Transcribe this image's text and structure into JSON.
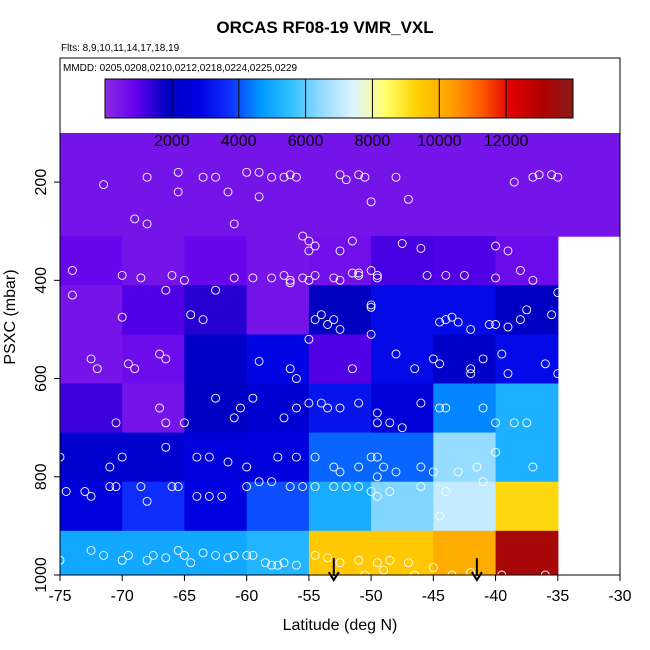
{
  "chart_data": {
    "type": "heatmap",
    "title": "ORCAS RF08-19 VMR_VXL",
    "flights_note": "Flts: 8,9,10,11,14,17,18,19",
    "dates_note": "MMDD: 0205,0208,0210,0212,0218,0224,0225,0229",
    "xlabel": "Latitude (deg N)",
    "ylabel": "PSXC (mbar)",
    "xlim": [
      -75,
      -30
    ],
    "ylim": [
      1000,
      100
    ],
    "x_ticks": [
      -75,
      -70,
      -65,
      -60,
      -55,
      -50,
      -45,
      -40,
      -35,
      -30
    ],
    "x_tick_labels": [
      "-75",
      "-70",
      "-65",
      "-60",
      "-55",
      "-50",
      "-45",
      "-40",
      "-35",
      "-30"
    ],
    "y_ticks": [
      200,
      400,
      600,
      800,
      1000
    ],
    "y_tick_labels": [
      "200",
      "400",
      "600",
      "800",
      "1000"
    ],
    "colorbar": {
      "range": [
        0,
        14000
      ],
      "ticks": [
        2000,
        4000,
        6000,
        8000,
        10000,
        12000
      ],
      "tick_labels": [
        "2000",
        "4000",
        "6000",
        "8000",
        "10000",
        "12000"
      ],
      "colors": [
        "#8a2be2",
        "#6200ee",
        "#0000c0",
        "#0000e0",
        "#1030ff",
        "#0099ff",
        "#33c2ff",
        "#99ddff",
        "#e0f4ff",
        "#ffff66",
        "#ffd000",
        "#ffa500",
        "#ff6000",
        "#e00000",
        "#b00000",
        "#8b1a1a"
      ]
    },
    "lat_bins": [
      -75,
      -70,
      -65,
      -60,
      -55,
      -50,
      -45,
      -40,
      -35
    ],
    "pressure_bins": [
      100,
      150,
      250,
      350,
      450,
      550,
      650,
      750,
      850,
      950
    ],
    "rows": [
      {
        "p": [
          100,
          310
        ],
        "cells": [
          {
            "x": [
              -75,
              -60
            ],
            "value": 500
          },
          {
            "x": [
              -60,
              -35
            ],
            "value": 500
          },
          {
            "x": [
              -35,
              -30
            ],
            "value": 500
          }
        ]
      },
      {
        "p": [
          310,
          410
        ],
        "cells": [
          {
            "x": [
              -75,
              -70
            ],
            "value": 800
          },
          {
            "x": [
              -70,
              -65
            ],
            "value": 500
          },
          {
            "x": [
              -65,
              -60
            ],
            "value": 800
          },
          {
            "x": [
              -60,
              -55
            ],
            "value": 500
          },
          {
            "x": [
              -55,
              -50
            ],
            "value": 600
          },
          {
            "x": [
              -50,
              -45
            ],
            "value": 1200
          },
          {
            "x": [
              -45,
              -40
            ],
            "value": 1100
          },
          {
            "x": [
              -40,
              -35
            ],
            "value": 700
          }
        ]
      },
      {
        "p": [
          410,
          510
        ],
        "cells": [
          {
            "x": [
              -75,
              -70
            ],
            "value": 500
          },
          {
            "x": [
              -70,
              -65
            ],
            "value": 1100
          },
          {
            "x": [
              -65,
              -60
            ],
            "value": 1500
          },
          {
            "x": [
              -60,
              -55
            ],
            "value": 500
          },
          {
            "x": [
              -55,
              -50
            ],
            "value": 1900
          },
          {
            "x": [
              -50,
              -45
            ],
            "value": 3000
          },
          {
            "x": [
              -45,
              -40
            ],
            "value": 3000
          },
          {
            "x": [
              -40,
              -35
            ],
            "value": 2000
          }
        ]
      },
      {
        "p": [
          510,
          610
        ],
        "cells": [
          {
            "x": [
              -75,
              -70
            ],
            "value": 500
          },
          {
            "x": [
              -70,
              -65
            ],
            "value": 700
          },
          {
            "x": [
              -65,
              -60
            ],
            "value": 2100
          },
          {
            "x": [
              -60,
              -55
            ],
            "value": 2900
          },
          {
            "x": [
              -55,
              -50
            ],
            "value": 1100
          },
          {
            "x": [
              -50,
              -45
            ],
            "value": 3000
          },
          {
            "x": [
              -45,
              -40
            ],
            "value": 2100
          },
          {
            "x": [
              -40,
              -35
            ],
            "value": 3000
          }
        ]
      },
      {
        "p": [
          610,
          710
        ],
        "cells": [
          {
            "x": [
              -75,
              -70
            ],
            "value": 1300
          },
          {
            "x": [
              -70,
              -65
            ],
            "value": 500
          },
          {
            "x": [
              -65,
              -60
            ],
            "value": 2000
          },
          {
            "x": [
              -60,
              -55
            ],
            "value": 2400
          },
          {
            "x": [
              -55,
              -50
            ],
            "value": 3200
          },
          {
            "x": [
              -50,
              -45
            ],
            "value": 2600
          },
          {
            "x": [
              -45,
              -40
            ],
            "value": 4500
          },
          {
            "x": [
              -40,
              -35
            ],
            "value": 5200
          }
        ]
      },
      {
        "p": [
          710,
          810
        ],
        "cells": [
          {
            "x": [
              -75,
              -70
            ],
            "value": 2300
          },
          {
            "x": [
              -70,
              -65
            ],
            "value": 2300
          },
          {
            "x": [
              -65,
              -60
            ],
            "value": 2700
          },
          {
            "x": [
              -60,
              -55
            ],
            "value": 2700
          },
          {
            "x": [
              -55,
              -50
            ],
            "value": 4200
          },
          {
            "x": [
              -50,
              -45
            ],
            "value": 4200
          },
          {
            "x": [
              -45,
              -40
            ],
            "value": 6500
          },
          {
            "x": [
              -40,
              -35
            ],
            "value": 5200
          }
        ]
      },
      {
        "p": [
          810,
          910
        ],
        "cells": [
          {
            "x": [
              -75,
              -70
            ],
            "value": 2700
          },
          {
            "x": [
              -70,
              -65
            ],
            "value": 3700
          },
          {
            "x": [
              -65,
              -60
            ],
            "value": 2800
          },
          {
            "x": [
              -60,
              -55
            ],
            "value": 4000
          },
          {
            "x": [
              -55,
              -50
            ],
            "value": 5100
          },
          {
            "x": [
              -50,
              -45
            ],
            "value": 6300
          },
          {
            "x": [
              -45,
              -40
            ],
            "value": 7100
          },
          {
            "x": [
              -40,
              -35
            ],
            "value": 9200
          }
        ]
      },
      {
        "p": [
          910,
          1010
        ],
        "cells": [
          {
            "x": [
              -75,
              -70
            ],
            "value": 5000
          },
          {
            "x": [
              -70,
              -65
            ],
            "value": 5000
          },
          {
            "x": [
              -65,
              -60
            ],
            "value": 5000
          },
          {
            "x": [
              -60,
              -55
            ],
            "value": 5300
          },
          {
            "x": [
              -55,
              -50
            ],
            "value": 9500
          },
          {
            "x": [
              -50,
              -45
            ],
            "value": 9500
          },
          {
            "x": [
              -45,
              -40
            ],
            "value": 10100
          },
          {
            "x": [
              -40,
              -35
            ],
            "value": 13300
          }
        ]
      }
    ],
    "markers": [
      {
        "lat": -53,
        "pressure": 990,
        "symbol": "down-arrow"
      },
      {
        "lat": -41.5,
        "pressure": 990,
        "symbol": "down-arrow"
      }
    ],
    "observations": [
      [
        -71.5,
        205
      ],
      [
        -68,
        190
      ],
      [
        -65.5,
        180
      ],
      [
        -63.5,
        190
      ],
      [
        -62.5,
        190
      ],
      [
        -60,
        180
      ],
      [
        -59,
        180
      ],
      [
        -58,
        190
      ],
      [
        -57,
        190
      ],
      [
        -56.5,
        185
      ],
      [
        -56,
        190
      ],
      [
        -52.5,
        185
      ],
      [
        -52,
        195
      ],
      [
        -51,
        185
      ],
      [
        -50.5,
        190
      ],
      [
        -50,
        240
      ],
      [
        -48,
        190
      ],
      [
        -47,
        235
      ],
      [
        -38.5,
        200
      ],
      [
        -37,
        190
      ],
      [
        -36.5,
        185
      ],
      [
        -35.5,
        185
      ],
      [
        -35,
        190
      ],
      [
        -69,
        275
      ],
      [
        -68,
        285
      ],
      [
        -65.5,
        220
      ],
      [
        -61.5,
        220
      ],
      [
        -61,
        285
      ],
      [
        -59,
        230
      ],
      [
        -55.5,
        310
      ],
      [
        -55,
        320
      ],
      [
        -55,
        340
      ],
      [
        -54.5,
        330
      ],
      [
        -52.5,
        340
      ],
      [
        -51.5,
        320
      ],
      [
        -51,
        390
      ],
      [
        -50,
        380
      ],
      [
        -49.5,
        390
      ],
      [
        -49.5,
        395
      ],
      [
        -47.5,
        325
      ],
      [
        -46,
        335
      ],
      [
        -45.5,
        390
      ],
      [
        -44,
        390
      ],
      [
        -42.5,
        390
      ],
      [
        -40,
        330
      ],
      [
        -40,
        395
      ],
      [
        -39,
        340
      ],
      [
        -38,
        380
      ],
      [
        -37,
        400
      ],
      [
        -35,
        425
      ],
      [
        -74,
        380
      ],
      [
        -70,
        390
      ],
      [
        -70,
        475
      ],
      [
        -68.5,
        395
      ],
      [
        -66.5,
        420
      ],
      [
        -66,
        390
      ],
      [
        -65,
        400
      ],
      [
        -62.5,
        420
      ],
      [
        -61,
        395
      ],
      [
        -59.5,
        395
      ],
      [
        -58,
        395
      ],
      [
        -57,
        390
      ],
      [
        -56.5,
        400
      ],
      [
        -56.5,
        405
      ],
      [
        -55.5,
        395
      ],
      [
        -55,
        400
      ],
      [
        -54.5,
        390
      ],
      [
        -53,
        395
      ],
      [
        -52.5,
        400
      ],
      [
        -51.5,
        385
      ],
      [
        -51,
        385
      ],
      [
        -50,
        450
      ],
      [
        -50,
        455
      ],
      [
        -44.5,
        485
      ],
      [
        -44,
        480
      ],
      [
        -43.5,
        475
      ],
      [
        -43,
        485
      ],
      [
        -42,
        500
      ],
      [
        -40.5,
        490
      ],
      [
        -40,
        490
      ],
      [
        -39,
        495
      ],
      [
        -38,
        480
      ],
      [
        -37.5,
        460
      ],
      [
        -35.5,
        470
      ],
      [
        -74,
        430
      ],
      [
        -72.5,
        560
      ],
      [
        -72,
        580
      ],
      [
        -69.5,
        570
      ],
      [
        -69,
        580
      ],
      [
        -67,
        550
      ],
      [
        -66.5,
        560
      ],
      [
        -64.5,
        470
      ],
      [
        -63.5,
        480
      ],
      [
        -59,
        565
      ],
      [
        -56.5,
        580
      ],
      [
        -56,
        600
      ],
      [
        -55,
        520
      ],
      [
        -54.5,
        480
      ],
      [
        -54,
        470
      ],
      [
        -53.5,
        490
      ],
      [
        -53,
        480
      ],
      [
        -52.5,
        500
      ],
      [
        -51.5,
        580
      ],
      [
        -50,
        510
      ],
      [
        -48,
        550
      ],
      [
        -46.5,
        580
      ],
      [
        -45,
        560
      ],
      [
        -44.5,
        570
      ],
      [
        -42,
        580
      ],
      [
        -42,
        590
      ],
      [
        -41,
        560
      ],
      [
        -39.5,
        550
      ],
      [
        -39,
        590
      ],
      [
        -36,
        570
      ],
      [
        -35,
        590
      ],
      [
        -70.5,
        690
      ],
      [
        -67,
        660
      ],
      [
        -66.5,
        690
      ],
      [
        -65,
        690
      ],
      [
        -62.5,
        640
      ],
      [
        -61,
        680
      ],
      [
        -60.5,
        660
      ],
      [
        -59.5,
        640
      ],
      [
        -57,
        680
      ],
      [
        -56,
        660
      ],
      [
        -55,
        650
      ],
      [
        -54,
        650
      ],
      [
        -53.5,
        660
      ],
      [
        -52.5,
        660
      ],
      [
        -51,
        650
      ],
      [
        -49.5,
        670
      ],
      [
        -49.5,
        690
      ],
      [
        -48.5,
        690
      ],
      [
        -47.5,
        700
      ],
      [
        -46,
        650
      ],
      [
        -44.5,
        660
      ],
      [
        -44,
        660
      ],
      [
        -41,
        660
      ],
      [
        -40,
        690
      ],
      [
        -38.5,
        690
      ],
      [
        -37.5,
        690
      ],
      [
        -75,
        760
      ],
      [
        -71,
        780
      ],
      [
        -70,
        760
      ],
      [
        -66.5,
        740
      ],
      [
        -64,
        760
      ],
      [
        -63,
        760
      ],
      [
        -61.5,
        770
      ],
      [
        -60,
        780
      ],
      [
        -57.5,
        760
      ],
      [
        -56,
        760
      ],
      [
        -54.5,
        760
      ],
      [
        -53,
        780
      ],
      [
        -52.5,
        790
      ],
      [
        -51,
        780
      ],
      [
        -50,
        760
      ],
      [
        -49.5,
        760
      ],
      [
        -49,
        780
      ],
      [
        -48,
        790
      ],
      [
        -46,
        780
      ],
      [
        -45,
        790
      ],
      [
        -43,
        790
      ],
      [
        -41.5,
        780
      ],
      [
        -40,
        750
      ],
      [
        -37,
        780
      ],
      [
        -74.5,
        830
      ],
      [
        -73,
        830
      ],
      [
        -72.5,
        840
      ],
      [
        -71,
        820
      ],
      [
        -70.5,
        820
      ],
      [
        -68.5,
        820
      ],
      [
        -68,
        850
      ],
      [
        -66,
        820
      ],
      [
        -65.5,
        820
      ],
      [
        -64,
        840
      ],
      [
        -63,
        840
      ],
      [
        -62,
        840
      ],
      [
        -60,
        820
      ],
      [
        -59,
        810
      ],
      [
        -58,
        810
      ],
      [
        -56.5,
        820
      ],
      [
        -55.5,
        820
      ],
      [
        -54.5,
        820
      ],
      [
        -53,
        820
      ],
      [
        -52,
        820
      ],
      [
        -51,
        820
      ],
      [
        -50,
        830
      ],
      [
        -49.5,
        800
      ],
      [
        -49.5,
        840
      ],
      [
        -48.5,
        830
      ],
      [
        -46,
        820
      ],
      [
        -44.5,
        880
      ],
      [
        -44,
        830
      ],
      [
        -41,
        810
      ],
      [
        -75,
        970
      ],
      [
        -72.5,
        950
      ],
      [
        -71.5,
        960
      ],
      [
        -70,
        970
      ],
      [
        -69.5,
        960
      ],
      [
        -68,
        970
      ],
      [
        -67.5,
        960
      ],
      [
        -66.5,
        965
      ],
      [
        -65.5,
        950
      ],
      [
        -65,
        960
      ],
      [
        -64.5,
        975
      ],
      [
        -63.5,
        955
      ],
      [
        -62.5,
        960
      ],
      [
        -61.5,
        965
      ],
      [
        -61,
        960
      ],
      [
        -60,
        960
      ],
      [
        -59.5,
        960
      ],
      [
        -58.5,
        975
      ],
      [
        -58,
        980
      ],
      [
        -57.5,
        980
      ],
      [
        -57,
        975
      ],
      [
        -56,
        980
      ],
      [
        -54.5,
        960
      ],
      [
        -53.5,
        965
      ],
      [
        -52.5,
        975
      ],
      [
        -51,
        970
      ],
      [
        -50.5,
        1000
      ],
      [
        -49,
        990
      ],
      [
        -49.5,
        975
      ],
      [
        -48.5,
        970
      ],
      [
        -47,
        975
      ],
      [
        -46.5,
        1000
      ],
      [
        -45,
        985
      ],
      [
        -43.5,
        1000
      ],
      [
        -42,
        995
      ],
      [
        -39.5,
        1000
      ],
      [
        -36,
        1000
      ]
    ]
  }
}
